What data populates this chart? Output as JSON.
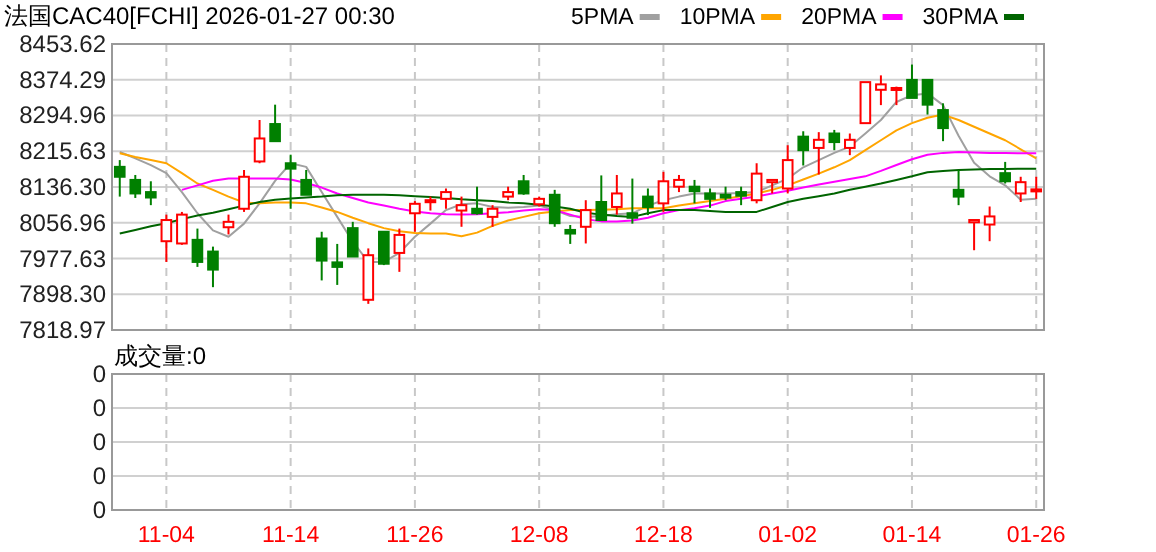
{
  "chart_data": [
    {
      "type": "candlestick",
      "title": "法国CAC40[FCHI] 2026-01-27 00:30",
      "categories": [
        null,
        null,
        null,
        null,
        null,
        null,
        null,
        null,
        null,
        null,
        null,
        null,
        null,
        null,
        null,
        null,
        null,
        null,
        null,
        null,
        null,
        null,
        null,
        null,
        null,
        null,
        null,
        null,
        null,
        null,
        null,
        null,
        null,
        null,
        null,
        null,
        null,
        null,
        null,
        null,
        null,
        null,
        null,
        null,
        null,
        null,
        null,
        null,
        null,
        null,
        null,
        null,
        null,
        null,
        null,
        null,
        null,
        null,
        null,
        null
      ],
      "ohlc": [
        [
          8181,
          8196,
          8115,
          8159
        ],
        [
          8152,
          8163,
          8112,
          8122
        ],
        [
          8125,
          8149,
          8096,
          8113
        ],
        [
          8016,
          8075,
          7970,
          8063
        ],
        [
          8011,
          8081,
          8008,
          8075
        ],
        [
          8019,
          8044,
          7959,
          7970
        ],
        [
          7993,
          8004,
          7914,
          7953
        ],
        [
          8047,
          8075,
          8031,
          8059
        ],
        [
          8088,
          8174,
          8081,
          8159
        ],
        [
          8193,
          8285,
          8189,
          8244
        ],
        [
          8276,
          8319,
          8238,
          8238
        ],
        [
          8189,
          8208,
          8088,
          8177
        ],
        [
          8152,
          8174,
          8119,
          8119
        ],
        [
          8022,
          8037,
          7929,
          7973
        ],
        [
          7969,
          8010,
          7919,
          7959
        ],
        [
          8045,
          8059,
          7982,
          7982
        ],
        [
          7886,
          8000,
          7877,
          7985
        ],
        [
          8037,
          8037,
          7963,
          7966
        ],
        [
          7990,
          8044,
          7948,
          8030
        ],
        [
          8078,
          8105,
          8037,
          8099
        ],
        [
          8104,
          8115,
          8084,
          8107
        ],
        [
          8110,
          8133,
          8088,
          8125
        ],
        [
          8084,
          8115,
          8048,
          8096
        ],
        [
          8088,
          8137,
          8075,
          8078
        ],
        [
          8070,
          8096,
          8048,
          8088
        ],
        [
          8115,
          8137,
          8107,
          8125
        ],
        [
          8149,
          8163,
          8119,
          8122
        ],
        [
          8098,
          8115,
          8093,
          8110
        ],
        [
          8119,
          8130,
          8048,
          8056
        ],
        [
          8041,
          8052,
          8010,
          8033
        ],
        [
          8048,
          8107,
          8011,
          8085
        ],
        [
          8103,
          8162,
          8063,
          8063
        ],
        [
          8092,
          8163,
          8075,
          8122
        ],
        [
          8078,
          8155,
          8055,
          8068
        ],
        [
          8115,
          8133,
          8074,
          8092
        ],
        [
          8100,
          8170,
          8081,
          8149
        ],
        [
          8137,
          8163,
          8125,
          8152
        ],
        [
          8137,
          8152,
          8100,
          8127
        ],
        [
          8122,
          8133,
          8090,
          8110
        ],
        [
          8119,
          8137,
          8107,
          8113
        ],
        [
          8125,
          8137,
          8096,
          8117
        ],
        [
          8107,
          8189,
          8100,
          8166
        ],
        [
          8147,
          8152,
          8122,
          8152
        ],
        [
          8133,
          8229,
          8122,
          8196
        ],
        [
          8248,
          8260,
          8184,
          8218
        ],
        [
          8223,
          8258,
          8164,
          8241
        ],
        [
          8255,
          8263,
          8218,
          8236
        ],
        [
          8223,
          8255,
          8207,
          8241
        ],
        [
          8278,
          8369,
          8278,
          8369
        ],
        [
          8352,
          8384,
          8318,
          8364
        ],
        [
          8353,
          8359,
          8318,
          8356
        ],
        [
          8374,
          8408,
          8334,
          8334
        ],
        [
          8374,
          8374,
          8297,
          8319
        ],
        [
          8307,
          8322,
          8238,
          8267
        ],
        [
          8130,
          8174,
          8096,
          8115
        ],
        [
          8058,
          8063,
          7996,
          8063
        ],
        [
          8053,
          8093,
          8016,
          8071
        ],
        [
          8167,
          8192,
          8144,
          8149
        ],
        [
          8122,
          8159,
          8103,
          8147
        ],
        [
          8128,
          8159,
          8110,
          8131
        ]
      ],
      "colors": [
        "#008000",
        "#008000",
        "#008000",
        "#ff0000",
        "#ff0000",
        "#008000",
        "#008000",
        "#ff0000",
        "#ff0000",
        "#ff0000",
        "#008000",
        "#008000",
        "#008000",
        "#008000",
        "#008000",
        "#008000",
        "#ff0000",
        "#008000",
        "#ff0000",
        "#ff0000",
        "#ff0000",
        "#ff0000",
        "#ff0000",
        "#008000",
        "#ff0000",
        "#ff0000",
        "#008000",
        "#ff0000",
        "#008000",
        "#008000",
        "#ff0000",
        "#008000",
        "#ff0000",
        "#008000",
        "#008000",
        "#ff0000",
        "#ff0000",
        "#008000",
        "#008000",
        "#008000",
        "#008000",
        "#ff0000",
        "#ff0000",
        "#ff0000",
        "#008000",
        "#ff0000",
        "#008000",
        "#ff0000",
        "#ff0000",
        "#ff0000",
        "#ff0000",
        "#008000",
        "#008000",
        "#008000",
        "#008000",
        "#ff0000",
        "#ff0000",
        "#008000",
        "#ff0000",
        "#ff0000"
      ],
      "series": [
        {
          "name": "5PMA",
          "type": "line",
          "color": "#a0a0a0",
          "values": [
            8214,
            8200,
            8185,
            8167,
            8125,
            8078,
            8040,
            8026,
            8055,
            8100,
            8150,
            8189,
            8181,
            8125,
            8070,
            8015,
            7970,
            7970,
            7990,
            8026,
            8055,
            8085,
            8098,
            8100,
            8092,
            8090,
            8092,
            8095,
            8085,
            8072,
            8070,
            8072,
            8076,
            8078,
            8095,
            8107,
            8115,
            8122,
            8122,
            8122,
            8123,
            8125,
            8140,
            8155,
            8180,
            8196,
            8212,
            8226,
            8255,
            8285,
            8325,
            8340,
            8344,
            8318,
            8250,
            8190,
            8160,
            8140,
            8108,
            8110
          ]
        },
        {
          "name": "10PMA",
          "type": "line",
          "color": "#ffa500",
          "values": [
            8211,
            8203,
            8196,
            8189,
            8167,
            8144,
            8130,
            8115,
            8102,
            8100,
            8102,
            8102,
            8100,
            8091,
            8081,
            8068,
            8056,
            8045,
            8038,
            8034,
            8033,
            8033,
            8027,
            8035,
            8050,
            8062,
            8070,
            8078,
            8082,
            8085,
            8085,
            8086,
            8087,
            8089,
            8089,
            8089,
            8095,
            8100,
            8105,
            8110,
            8116,
            8122,
            8130,
            8140,
            8153,
            8166,
            8180,
            8196,
            8218,
            8240,
            8262,
            8278,
            8290,
            8297,
            8285,
            8270,
            8255,
            8240,
            8220,
            8200
          ]
        },
        {
          "name": "20PMA",
          "type": "line",
          "color": "#ff00ff",
          "values": [
            null,
            null,
            null,
            null,
            8130,
            8140,
            8150,
            8155,
            8155,
            8155,
            8155,
            8153,
            8145,
            8135,
            8122,
            8112,
            8102,
            8095,
            8088,
            8082,
            8078,
            8076,
            8075,
            8076,
            8078,
            8080,
            8084,
            8087,
            8085,
            8075,
            8065,
            8060,
            8060,
            8062,
            8068,
            8078,
            8085,
            8089,
            8095,
            8105,
            8110,
            8115,
            8122,
            8128,
            8135,
            8142,
            8148,
            8154,
            8160,
            8172,
            8185,
            8198,
            8208,
            8212,
            8214,
            8213,
            8212,
            8212,
            8211,
            8211
          ]
        },
        {
          "name": "30PMA",
          "type": "line",
          "color": "#006400",
          "values": [
            8033,
            8041,
            8049,
            8056,
            8065,
            8073,
            8079,
            8087,
            8095,
            8103,
            8108,
            8111,
            8113,
            8115,
            8118,
            8119,
            8119,
            8119,
            8118,
            8116,
            8114,
            8112,
            8109,
            8107,
            8105,
            8102,
            8100,
            8097,
            8093,
            8088,
            8079,
            8075,
            8072,
            8070,
            8078,
            8085,
            8085,
            8085,
            8083,
            8081,
            8081,
            8081,
            8092,
            8103,
            8110,
            8116,
            8122,
            8130,
            8137,
            8144,
            8152,
            8160,
            8169,
            8172,
            8174,
            8175,
            8176,
            8176,
            8177,
            8177
          ]
        }
      ],
      "ylim": [
        7818.97,
        8453.62
      ],
      "yticks": [
        8453.62,
        8374.29,
        8294.96,
        8215.63,
        {
          "value": 8136.3,
          "label": "8136.30"
        },
        8056.96,
        7977.63,
        {
          "value": 7898.3,
          "label": "7898.30"
        },
        7818.97
      ],
      "grid": true,
      "legend": "top right",
      "tick_labels": "y"
    },
    {
      "type": "other",
      "title": "成交量:0",
      "categories": [
        null,
        null,
        null,
        "11-04",
        null,
        null,
        null,
        null,
        null,
        null,
        null,
        "11-14",
        null,
        null,
        null,
        null,
        null,
        null,
        null,
        "11-26",
        null,
        null,
        null,
        null,
        null,
        null,
        null,
        "12-08",
        null,
        null,
        null,
        null,
        null,
        null,
        null,
        "12-18",
        null,
        null,
        null,
        null,
        null,
        null,
        null,
        "01-02",
        null,
        null,
        null,
        null,
        null,
        null,
        null,
        "01-14",
        null,
        null,
        null,
        null,
        null,
        null,
        null,
        "01-26"
      ],
      "annotations": [
        "0",
        "0",
        "0",
        "0",
        "0"
      ]
    }
  ]
}
